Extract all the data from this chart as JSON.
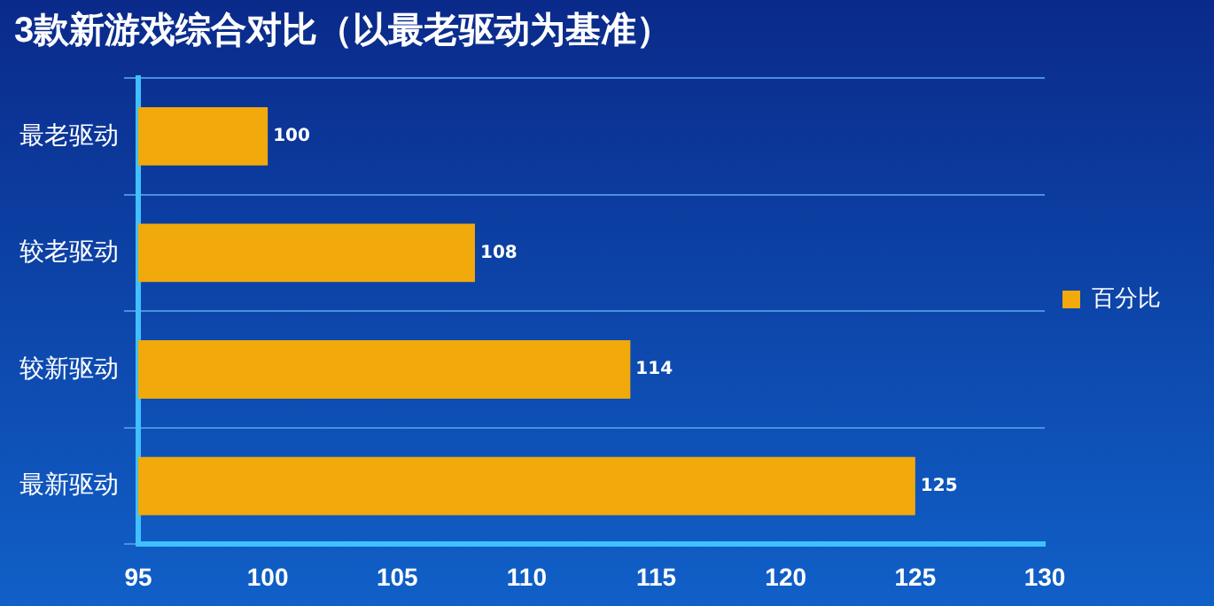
{
  "chart_data": {
    "type": "bar",
    "orientation": "horizontal",
    "title": "3款新游戏综合对比（以最老驱动为基准）",
    "categories": [
      "最老驱动",
      "较老驱动",
      "较新驱动",
      "最新驱动"
    ],
    "series": [
      {
        "name": "百分比",
        "color": "#f2a90c",
        "values": [
          100,
          108,
          114,
          125
        ]
      }
    ],
    "xlim": [
      95,
      130
    ],
    "xticks": [
      95,
      100,
      105,
      110,
      115,
      120,
      125,
      130
    ],
    "grid": "y",
    "legend": "right",
    "data_labels": true
  }
}
